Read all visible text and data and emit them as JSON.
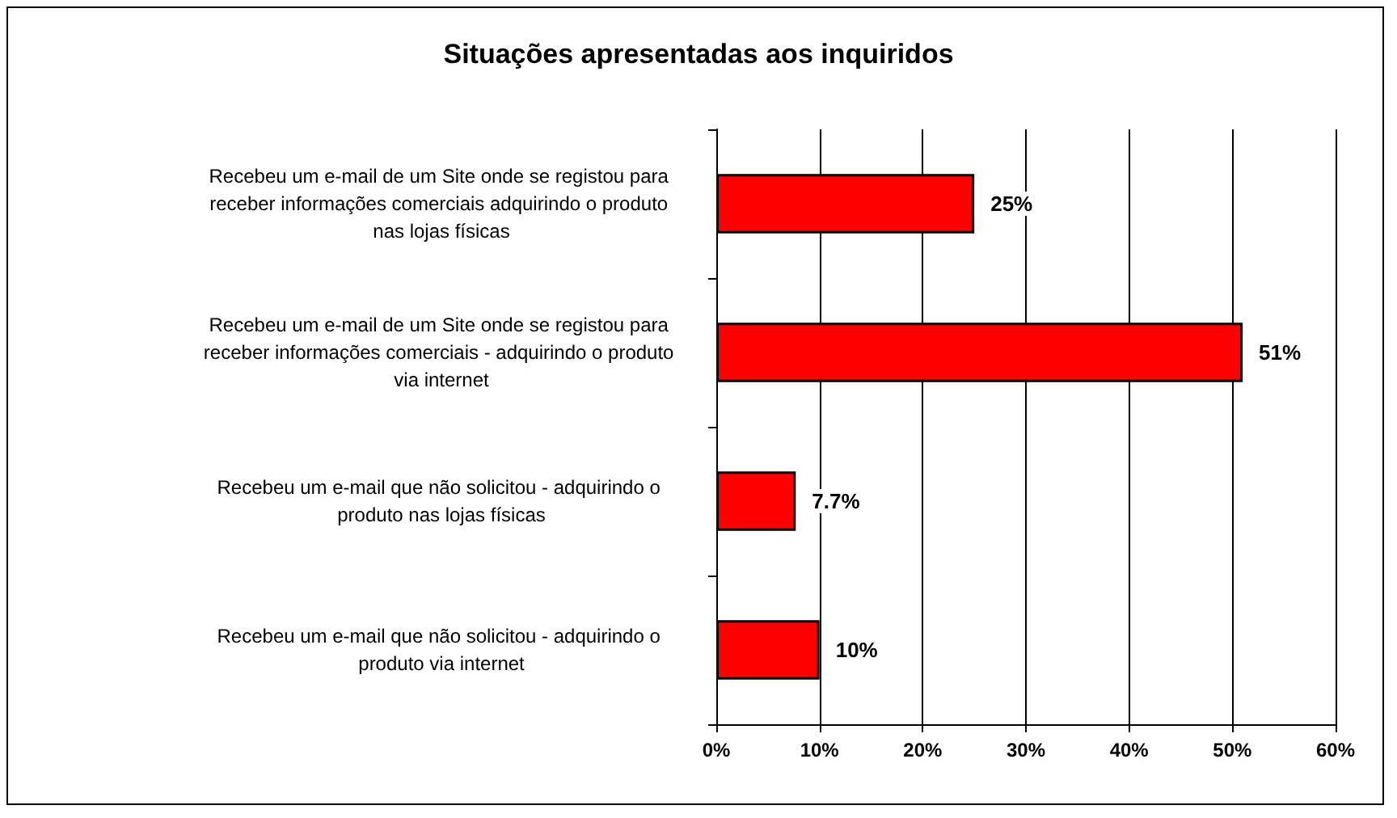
{
  "chart_data": {
    "type": "bar",
    "title": "Situações apresentadas aos inquiridos",
    "orientation": "horizontal",
    "categories": [
      "Recebeu um e-mail de um Site onde se registou para receber informações comerciais adquirindo o produto nas lojas físicas",
      "Recebeu um e-mail de um Site onde se registou para receber informações comerciais - adquirindo o produto via internet",
      "Recebeu um e-mail que não solicitou - adquirindo o produto nas lojas físicas",
      "Recebeu um e-mail que não solicitou - adquirindo o produto via internet"
    ],
    "values": [
      25,
      51,
      7.7,
      10
    ],
    "color": "#ff0000",
    "value_labels": [
      "25%",
      "51%",
      "7.7%",
      "10%"
    ],
    "xlim": [
      0,
      60
    ],
    "xticks": [
      {
        "value": 0,
        "label": "0%"
      },
      {
        "value": 10,
        "label": "10%"
      },
      {
        "value": 20,
        "label": "20%"
      },
      {
        "value": 30,
        "label": "30%"
      },
      {
        "value": 40,
        "label": "40%"
      },
      {
        "value": 50,
        "label": "50%"
      },
      {
        "value": 60,
        "label": "60%"
      }
    ],
    "grid": "x"
  }
}
